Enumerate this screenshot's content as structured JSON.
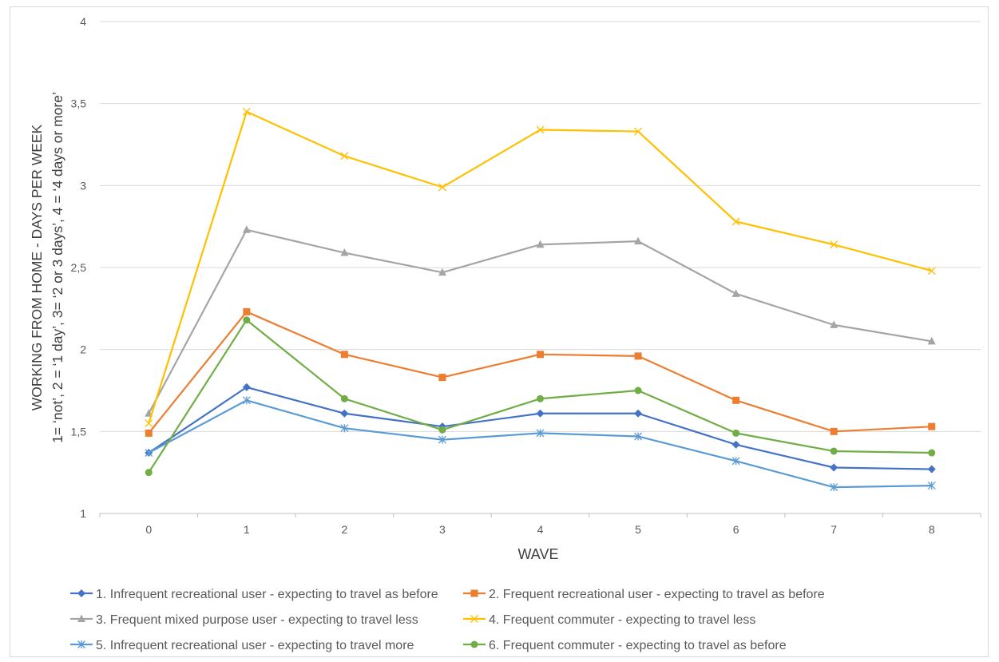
{
  "chart_data": {
    "type": "line",
    "title": "",
    "xlabel": "WAVE",
    "ylabel_lines": [
      "WORKING FROM HOME - DAYS PER WEEK",
      "1= ‘not’, 2 = ‘1 day’, 3= ‘2 or 3 days’,  4 = ‘4 days or more’"
    ],
    "x": [
      0,
      1,
      2,
      3,
      4,
      5,
      6,
      7,
      8
    ],
    "x_tick_labels": [
      "0",
      "1",
      "2",
      "3",
      "4",
      "5",
      "6",
      "7",
      "8"
    ],
    "ylim": [
      1,
      4
    ],
    "y_ticks": [
      1,
      1.5,
      2,
      2.5,
      3,
      3.5,
      4
    ],
    "y_tick_labels": [
      "1",
      "1,5",
      "2",
      "2,5",
      "3",
      "3,5",
      "4"
    ],
    "grid": "horizontal",
    "legend_position": "bottom",
    "series": [
      {
        "name": "1. Infrequent recreational user - expecting to travel as before",
        "color": "#4472C4",
        "marker": "diamond",
        "values": [
          1.37,
          1.77,
          1.61,
          1.53,
          1.61,
          1.61,
          1.42,
          1.28,
          1.27
        ]
      },
      {
        "name": "2. Frequent recreational user - expecting to travel as before",
        "color": "#ED7D31",
        "marker": "square",
        "values": [
          1.49,
          2.23,
          1.97,
          1.83,
          1.97,
          1.96,
          1.69,
          1.5,
          1.53
        ]
      },
      {
        "name": "3. Frequent mixed purpose user - expecting to travel less",
        "color": "#A5A5A5",
        "marker": "triangle",
        "values": [
          1.61,
          2.73,
          2.59,
          2.47,
          2.64,
          2.66,
          2.34,
          2.15,
          2.05
        ]
      },
      {
        "name": "4. Frequent commuter - expecting to travel less",
        "color": "#FFC000",
        "marker": "x",
        "values": [
          1.55,
          3.45,
          3.18,
          2.99,
          3.34,
          3.33,
          2.78,
          2.64,
          2.48
        ]
      },
      {
        "name": "5. Infrequent recreational user - expecting to travel more",
        "color": "#5B9BD5",
        "marker": "star",
        "values": [
          1.37,
          1.69,
          1.52,
          1.45,
          1.49,
          1.47,
          1.32,
          1.16,
          1.17
        ]
      },
      {
        "name": "6. Frequent commuter - expecting to travel as before",
        "color": "#70AD47",
        "marker": "circle",
        "values": [
          1.25,
          2.18,
          1.7,
          1.51,
          1.7,
          1.75,
          1.49,
          1.38,
          1.37
        ]
      }
    ]
  }
}
